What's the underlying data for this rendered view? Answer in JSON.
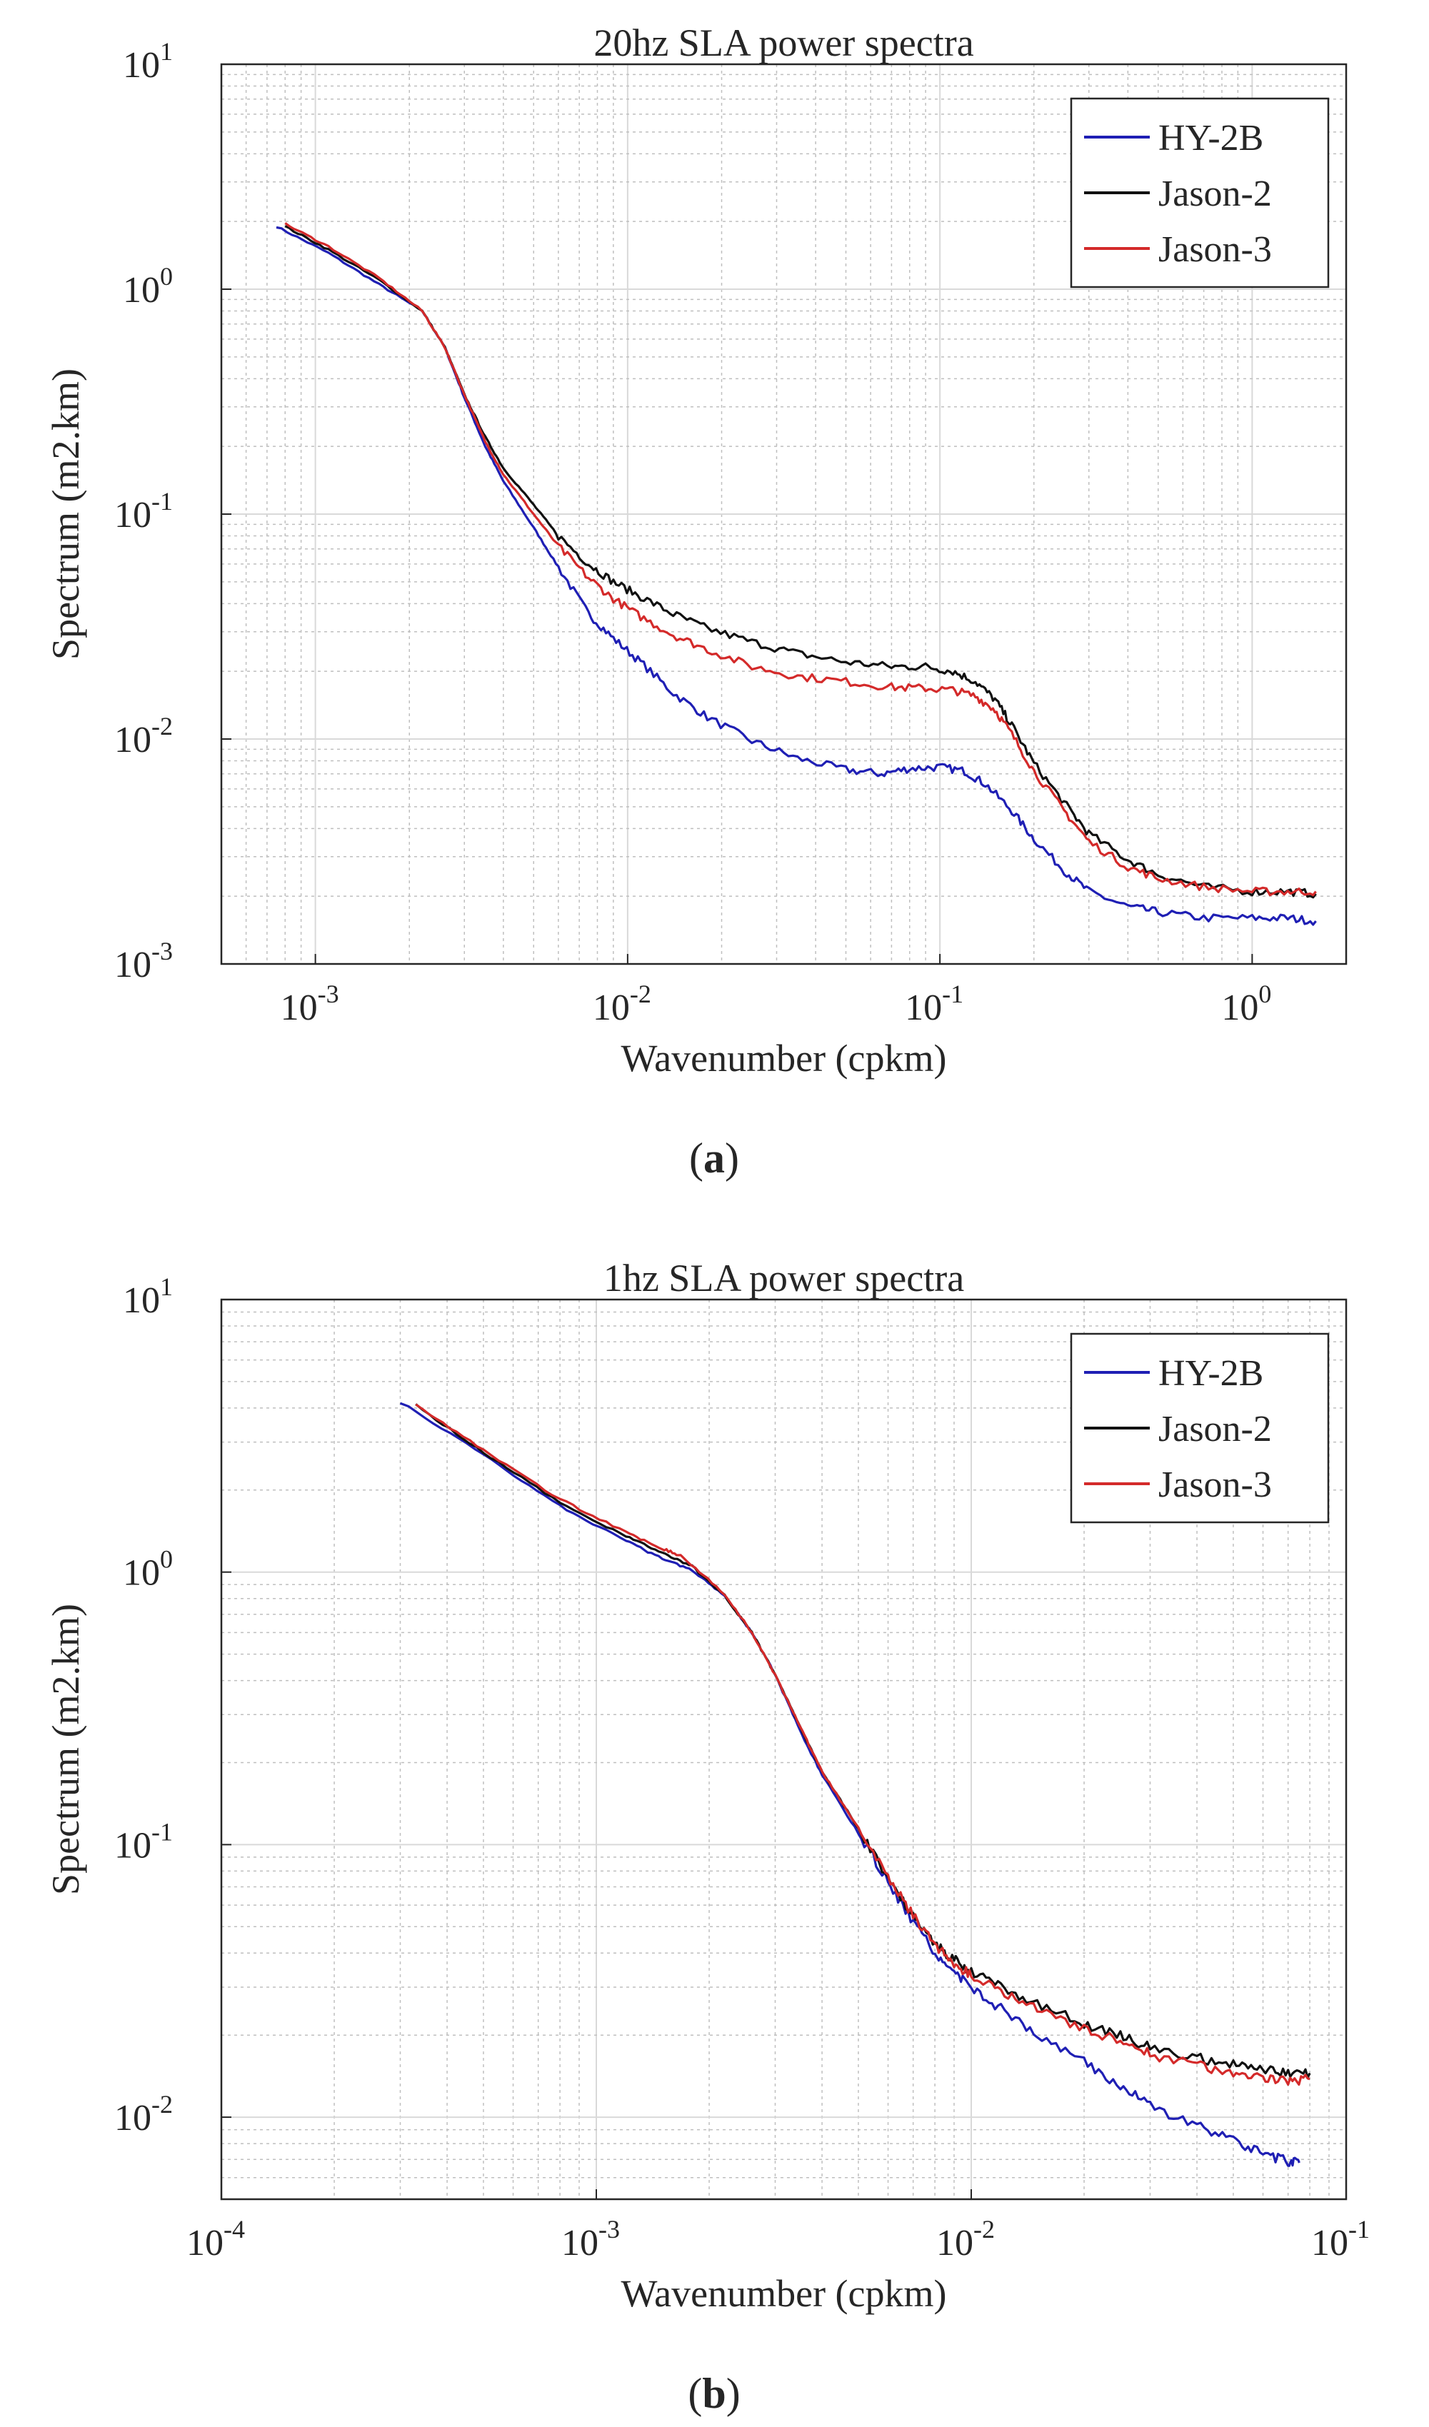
{
  "panels": [
    {
      "caption_open": "(",
      "caption_letter": "a",
      "caption_close": ")"
    },
    {
      "caption_open": "(",
      "caption_letter": "b",
      "caption_close": ")"
    }
  ],
  "colors": {
    "hy2b": "#1f1fb4",
    "jason2": "#111111",
    "jason3": "#d42a2a",
    "axis": "#262626",
    "grid_major": "#d9d9d9",
    "grid_minor": "#bfbfbf"
  },
  "chart_data": [
    {
      "type": "line",
      "title": "20hz SLA power spectra",
      "xlabel": "Wavenumber (cpkm)",
      "ylabel": "Spectrum (m2.km)",
      "xscale": "log",
      "yscale": "log",
      "xlim": [
        0.0005,
        2.0
      ],
      "ylim": [
        0.001,
        10
      ],
      "x_ticks": [
        {
          "value": 0.001,
          "base": "10",
          "exp": "-3"
        },
        {
          "value": 0.01,
          "base": "10",
          "exp": "-2"
        },
        {
          "value": 0.1,
          "base": "10",
          "exp": "-1"
        },
        {
          "value": 1,
          "base": "10",
          "exp": "0"
        }
      ],
      "y_ticks": [
        {
          "value": 0.001,
          "base": "10",
          "exp": "-3"
        },
        {
          "value": 0.01,
          "base": "10",
          "exp": "-2"
        },
        {
          "value": 0.1,
          "base": "10",
          "exp": "-1"
        },
        {
          "value": 1,
          "base": "10",
          "exp": "0"
        },
        {
          "value": 10,
          "base": "10",
          "exp": "1"
        }
      ],
      "grid": true,
      "legend_position": "top-right",
      "series": [
        {
          "name": "HY-2B",
          "color": "#1f1fb4",
          "points": [
            [
              0.00075,
              1.9
            ],
            [
              0.0011,
              1.45
            ],
            [
              0.0016,
              1.05
            ],
            [
              0.0022,
              0.8
            ],
            [
              0.0026,
              0.55
            ],
            [
              0.003,
              0.33
            ],
            [
              0.0035,
              0.2
            ],
            [
              0.004,
              0.14
            ],
            [
              0.005,
              0.087
            ],
            [
              0.006,
              0.058
            ],
            [
              0.0075,
              0.036
            ],
            [
              0.009,
              0.028
            ],
            [
              0.011,
              0.022
            ],
            [
              0.014,
              0.016
            ],
            [
              0.018,
              0.0125
            ],
            [
              0.025,
              0.0098
            ],
            [
              0.035,
              0.0082
            ],
            [
              0.05,
              0.0073
            ],
            [
              0.065,
              0.007
            ],
            [
              0.08,
              0.0074
            ],
            [
              0.1,
              0.0075
            ],
            [
              0.12,
              0.0072
            ],
            [
              0.14,
              0.0063
            ],
            [
              0.17,
              0.0048
            ],
            [
              0.2,
              0.0036
            ],
            [
              0.25,
              0.0026
            ],
            [
              0.3,
              0.0021
            ],
            [
              0.4,
              0.0018
            ],
            [
              0.5,
              0.0017
            ],
            [
              0.7,
              0.0016
            ],
            [
              1.0,
              0.0016
            ],
            [
              1.3,
              0.0016
            ],
            [
              1.6,
              0.00155
            ]
          ]
        },
        {
          "name": "Jason-2",
          "color": "#111111",
          "points": [
            [
              0.0008,
              1.9
            ],
            [
              0.0011,
              1.5
            ],
            [
              0.0016,
              1.1
            ],
            [
              0.0022,
              0.8
            ],
            [
              0.0026,
              0.55
            ],
            [
              0.003,
              0.34
            ],
            [
              0.0035,
              0.22
            ],
            [
              0.004,
              0.16
            ],
            [
              0.005,
              0.11
            ],
            [
              0.006,
              0.08
            ],
            [
              0.0075,
              0.06
            ],
            [
              0.009,
              0.05
            ],
            [
              0.011,
              0.043
            ],
            [
              0.014,
              0.036
            ],
            [
              0.018,
              0.031
            ],
            [
              0.025,
              0.027
            ],
            [
              0.035,
              0.024
            ],
            [
              0.05,
              0.022
            ],
            [
              0.07,
              0.021
            ],
            [
              0.09,
              0.021
            ],
            [
              0.11,
              0.02
            ],
            [
              0.13,
              0.018
            ],
            [
              0.15,
              0.015
            ],
            [
              0.17,
              0.0115
            ],
            [
              0.2,
              0.0078
            ],
            [
              0.25,
              0.0052
            ],
            [
              0.3,
              0.0038
            ],
            [
              0.4,
              0.0029
            ],
            [
              0.5,
              0.0025
            ],
            [
              0.7,
              0.0022
            ],
            [
              1.0,
              0.0021
            ],
            [
              1.3,
              0.0021
            ],
            [
              1.6,
              0.00205
            ]
          ]
        },
        {
          "name": "Jason-3",
          "color": "#d42a2a",
          "points": [
            [
              0.0008,
              1.95
            ],
            [
              0.0011,
              1.55
            ],
            [
              0.0016,
              1.12
            ],
            [
              0.0022,
              0.8
            ],
            [
              0.0026,
              0.55
            ],
            [
              0.003,
              0.34
            ],
            [
              0.0035,
              0.21
            ],
            [
              0.004,
              0.15
            ],
            [
              0.005,
              0.1
            ],
            [
              0.006,
              0.072
            ],
            [
              0.0075,
              0.052
            ],
            [
              0.009,
              0.042
            ],
            [
              0.011,
              0.035
            ],
            [
              0.014,
              0.029
            ],
            [
              0.018,
              0.025
            ],
            [
              0.025,
              0.021
            ],
            [
              0.035,
              0.019
            ],
            [
              0.05,
              0.018
            ],
            [
              0.07,
              0.017
            ],
            [
              0.09,
              0.0168
            ],
            [
              0.11,
              0.0165
            ],
            [
              0.13,
              0.0155
            ],
            [
              0.15,
              0.0135
            ],
            [
              0.17,
              0.0105
            ],
            [
              0.2,
              0.0072
            ],
            [
              0.25,
              0.0048
            ],
            [
              0.3,
              0.0035
            ],
            [
              0.4,
              0.0027
            ],
            [
              0.5,
              0.0024
            ],
            [
              0.7,
              0.0022
            ],
            [
              1.0,
              0.0021
            ],
            [
              1.3,
              0.0021
            ],
            [
              1.6,
              0.0021
            ]
          ]
        }
      ]
    },
    {
      "type": "line",
      "title": "1hz SLA power spectra",
      "xlabel": "Wavenumber (cpkm)",
      "ylabel": "Spectrum (m2.km)",
      "xscale": "log",
      "yscale": "log",
      "xlim": [
        0.0001,
        0.1
      ],
      "ylim": [
        0.005,
        10
      ],
      "x_ticks": [
        {
          "value": 0.0001,
          "base": "10",
          "exp": "-4"
        },
        {
          "value": 0.001,
          "base": "10",
          "exp": "-3"
        },
        {
          "value": 0.01,
          "base": "10",
          "exp": "-2"
        },
        {
          "value": 0.1,
          "base": "10",
          "exp": "-1"
        }
      ],
      "y_ticks": [
        {
          "value": 0.01,
          "base": "10",
          "exp": "-2"
        },
        {
          "value": 0.1,
          "base": "10",
          "exp": "-1"
        },
        {
          "value": 1,
          "base": "10",
          "exp": "0"
        },
        {
          "value": 10,
          "base": "10",
          "exp": "1"
        }
      ],
      "grid": true,
      "legend_position": "top-right",
      "series": [
        {
          "name": "HY-2B",
          "color": "#1f1fb4",
          "points": [
            [
              0.0003,
              4.2
            ],
            [
              0.0005,
              2.7
            ],
            [
              0.0008,
              1.75
            ],
            [
              0.0012,
              1.3
            ],
            [
              0.0015,
              1.12
            ],
            [
              0.0018,
              1.02
            ],
            [
              0.0022,
              0.82
            ],
            [
              0.0026,
              0.6
            ],
            [
              0.003,
              0.42
            ],
            [
              0.0035,
              0.26
            ],
            [
              0.004,
              0.18
            ],
            [
              0.005,
              0.11
            ],
            [
              0.006,
              0.073
            ],
            [
              0.007,
              0.052
            ],
            [
              0.008,
              0.04
            ],
            [
              0.009,
              0.034
            ],
            [
              0.01,
              0.03
            ],
            [
              0.012,
              0.025
            ],
            [
              0.015,
              0.02
            ],
            [
              0.02,
              0.016
            ],
            [
              0.025,
              0.013
            ],
            [
              0.03,
              0.011
            ],
            [
              0.04,
              0.0093
            ],
            [
              0.05,
              0.0082
            ],
            [
              0.06,
              0.0073
            ],
            [
              0.07,
              0.0069
            ],
            [
              0.075,
              0.0068
            ]
          ]
        },
        {
          "name": "Jason-2",
          "color": "#111111",
          "points": [
            [
              0.00033,
              4.1
            ],
            [
              0.0005,
              2.75
            ],
            [
              0.0008,
              1.8
            ],
            [
              0.0012,
              1.35
            ],
            [
              0.0015,
              1.18
            ],
            [
              0.0018,
              1.05
            ],
            [
              0.0022,
              0.82
            ],
            [
              0.0026,
              0.6
            ],
            [
              0.003,
              0.42
            ],
            [
              0.0035,
              0.27
            ],
            [
              0.004,
              0.185
            ],
            [
              0.005,
              0.115
            ],
            [
              0.006,
              0.075
            ],
            [
              0.007,
              0.055
            ],
            [
              0.008,
              0.043
            ],
            [
              0.009,
              0.038
            ],
            [
              0.01,
              0.034
            ],
            [
              0.012,
              0.03
            ],
            [
              0.015,
              0.026
            ],
            [
              0.02,
              0.022
            ],
            [
              0.025,
              0.02
            ],
            [
              0.03,
              0.018
            ],
            [
              0.04,
              0.0165
            ],
            [
              0.05,
              0.0155
            ],
            [
              0.06,
              0.015
            ],
            [
              0.07,
              0.0146
            ],
            [
              0.08,
              0.0145
            ]
          ]
        },
        {
          "name": "Jason-3",
          "color": "#d42a2a",
          "points": [
            [
              0.00033,
              4.1
            ],
            [
              0.0005,
              2.8
            ],
            [
              0.0008,
              1.85
            ],
            [
              0.0012,
              1.4
            ],
            [
              0.0015,
              1.22
            ],
            [
              0.0017,
              1.14
            ],
            [
              0.0022,
              0.83
            ],
            [
              0.0026,
              0.6
            ],
            [
              0.003,
              0.42
            ],
            [
              0.0035,
              0.27
            ],
            [
              0.004,
              0.185
            ],
            [
              0.005,
              0.115
            ],
            [
              0.006,
              0.075
            ],
            [
              0.007,
              0.055
            ],
            [
              0.008,
              0.043
            ],
            [
              0.009,
              0.037
            ],
            [
              0.01,
              0.033
            ],
            [
              0.012,
              0.029
            ],
            [
              0.015,
              0.025
            ],
            [
              0.02,
              0.021
            ],
            [
              0.025,
              0.019
            ],
            [
              0.03,
              0.017
            ],
            [
              0.04,
              0.0155
            ],
            [
              0.05,
              0.0145
            ],
            [
              0.06,
              0.014
            ],
            [
              0.07,
              0.0136
            ],
            [
              0.08,
              0.0138
            ]
          ]
        }
      ]
    }
  ]
}
